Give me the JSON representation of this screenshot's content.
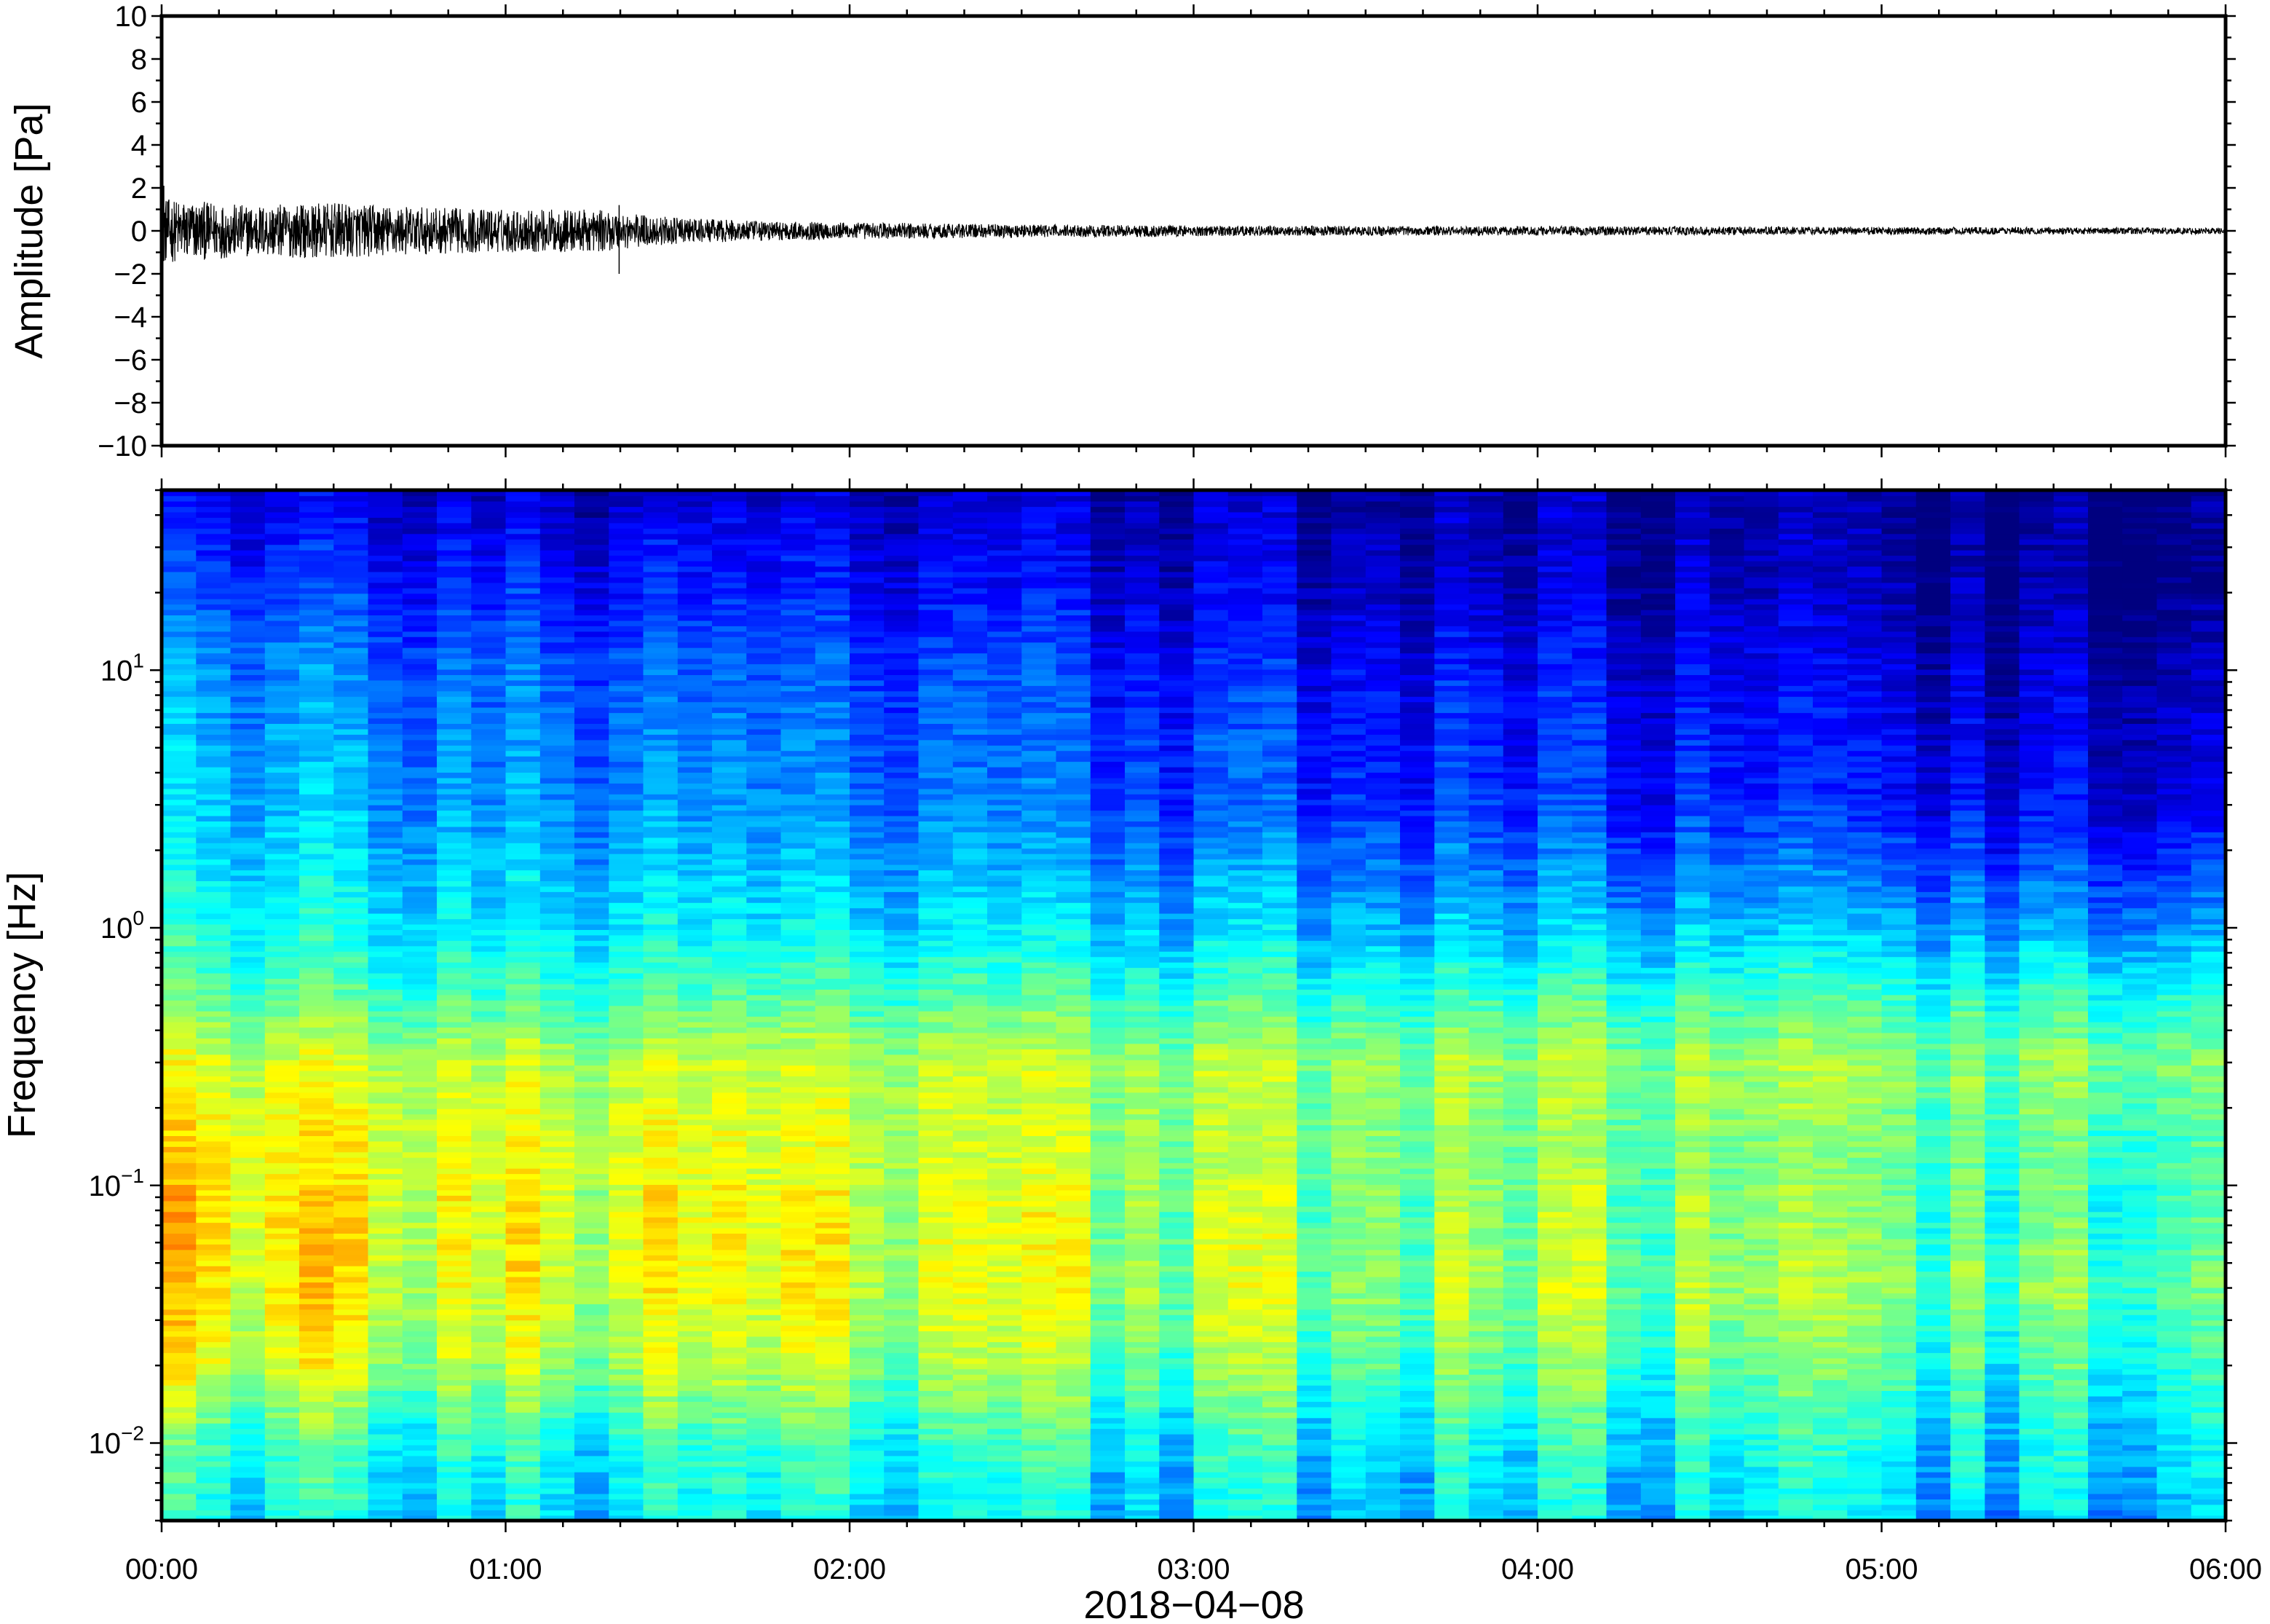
{
  "chart_data": [
    {
      "type": "line",
      "panel": "waveform",
      "title": "",
      "ylabel": "Amplitude [Pa]",
      "xlabel": "",
      "ylim": [
        -10,
        10
      ],
      "xlim_hours": [
        0,
        6
      ],
      "yticks": [
        {
          "value": 10,
          "label": "10"
        },
        {
          "value": 8,
          "label": "8"
        },
        {
          "value": 6,
          "label": "6"
        },
        {
          "value": 4,
          "label": "4"
        },
        {
          "value": 2,
          "label": "2"
        },
        {
          "value": 0,
          "label": "0"
        },
        {
          "value": -2,
          "label": "−2"
        },
        {
          "value": -4,
          "label": "−4"
        },
        {
          "value": -6,
          "label": "−6"
        },
        {
          "value": -8,
          "label": "−8"
        },
        {
          "value": -10,
          "label": "−10"
        }
      ],
      "envelope": {
        "x_hours": [
          0.0,
          0.25,
          0.5,
          0.75,
          1.0,
          1.25,
          1.5,
          1.75,
          2.0,
          2.5,
          3.0,
          3.5,
          4.0,
          4.5,
          5.0,
          5.5,
          6.0
        ],
        "amplitude_pa": [
          1.5,
          1.2,
          1.3,
          1.1,
          1.0,
          1.0,
          0.6,
          0.45,
          0.4,
          0.3,
          0.25,
          0.22,
          0.22,
          0.2,
          0.18,
          0.16,
          0.15
        ]
      },
      "spikes": [
        {
          "x_hours": 0.0,
          "y_min": -1.4,
          "y_max": 2.1
        },
        {
          "x_hours": 1.33,
          "y_min": -2.0,
          "y_max": 1.2
        }
      ],
      "color": "#000000",
      "grid": false
    },
    {
      "type": "heatmap",
      "panel": "spectrogram",
      "title": "",
      "ylabel": "Frequency [Hz]",
      "xlabel": "2018−04−08",
      "yscale": "log",
      "ylim_hz": [
        0.005,
        50
      ],
      "xlim_hours": [
        0,
        6
      ],
      "yticks": [
        {
          "value": 10,
          "base": "10",
          "exp": "1"
        },
        {
          "value": 1,
          "base": "10",
          "exp": "0"
        },
        {
          "value": 0.1,
          "base": "10",
          "exp": "−1"
        },
        {
          "value": 0.01,
          "base": "10",
          "exp": "−2"
        }
      ],
      "xticks": [
        {
          "value": 0,
          "label": "00:00"
        },
        {
          "value": 1,
          "label": "01:00"
        },
        {
          "value": 2,
          "label": "02:00"
        },
        {
          "value": 3,
          "label": "03:00"
        },
        {
          "value": 4,
          "label": "04:00"
        },
        {
          "value": 5,
          "label": "05:00"
        },
        {
          "value": 6,
          "label": "06:00"
        }
      ],
      "colormap": "jet",
      "colormap_stops": [
        "#00007f",
        "#0000ff",
        "#007fff",
        "#00ffff",
        "#7fff7f",
        "#ffff00",
        "#ff7f00",
        "#ff0000"
      ],
      "time_columns": 60,
      "frequency_rows": 190,
      "intensity_profile_freq_hz": [
        0.005,
        0.01,
        0.02,
        0.04,
        0.08,
        0.15,
        0.3,
        0.6,
        1,
        3,
        10,
        20,
        50
      ],
      "intensity_at_00h": [
        0.42,
        0.48,
        0.66,
        0.72,
        0.74,
        0.72,
        0.66,
        0.5,
        0.44,
        0.36,
        0.3,
        0.22,
        0.1
      ],
      "intensity_at_06h": [
        0.34,
        0.39,
        0.46,
        0.52,
        0.48,
        0.5,
        0.56,
        0.44,
        0.3,
        0.1,
        0.05,
        0.0,
        0.0
      ],
      "grid": false
    }
  ]
}
